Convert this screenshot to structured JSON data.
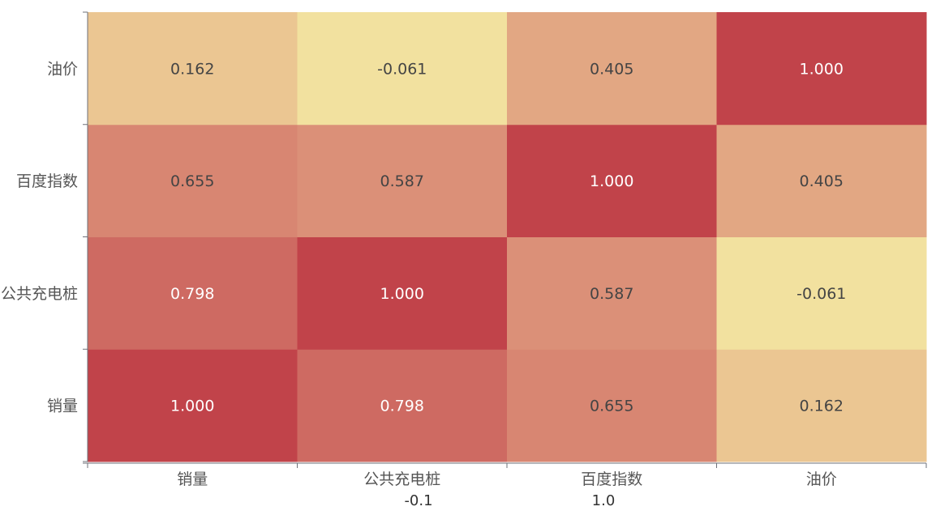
{
  "chart_data": {
    "type": "heatmap",
    "x_categories": [
      "销量",
      "公共充电桩",
      "百度指数",
      "油价"
    ],
    "y_categories": [
      "销量",
      "公共充电桩",
      "百度指数",
      "油价"
    ],
    "matrix": [
      [
        1.0,
        0.798,
        0.655,
        0.162
      ],
      [
        0.798,
        1.0,
        0.587,
        -0.061
      ],
      [
        0.655,
        0.587,
        1.0,
        0.405
      ],
      [
        0.162,
        -0.061,
        0.405,
        1.0
      ]
    ],
    "value_format_decimals": 3,
    "visual_map": {
      "min": -0.1,
      "max": 1.0,
      "min_label": "-0.1",
      "max_label": "1.0",
      "colors": [
        "#f3e6a1",
        "#e8b98c",
        "#d98a75",
        "#c1434a"
      ]
    },
    "label_color_light": "#ffffff",
    "label_color_dark": "#444444"
  }
}
